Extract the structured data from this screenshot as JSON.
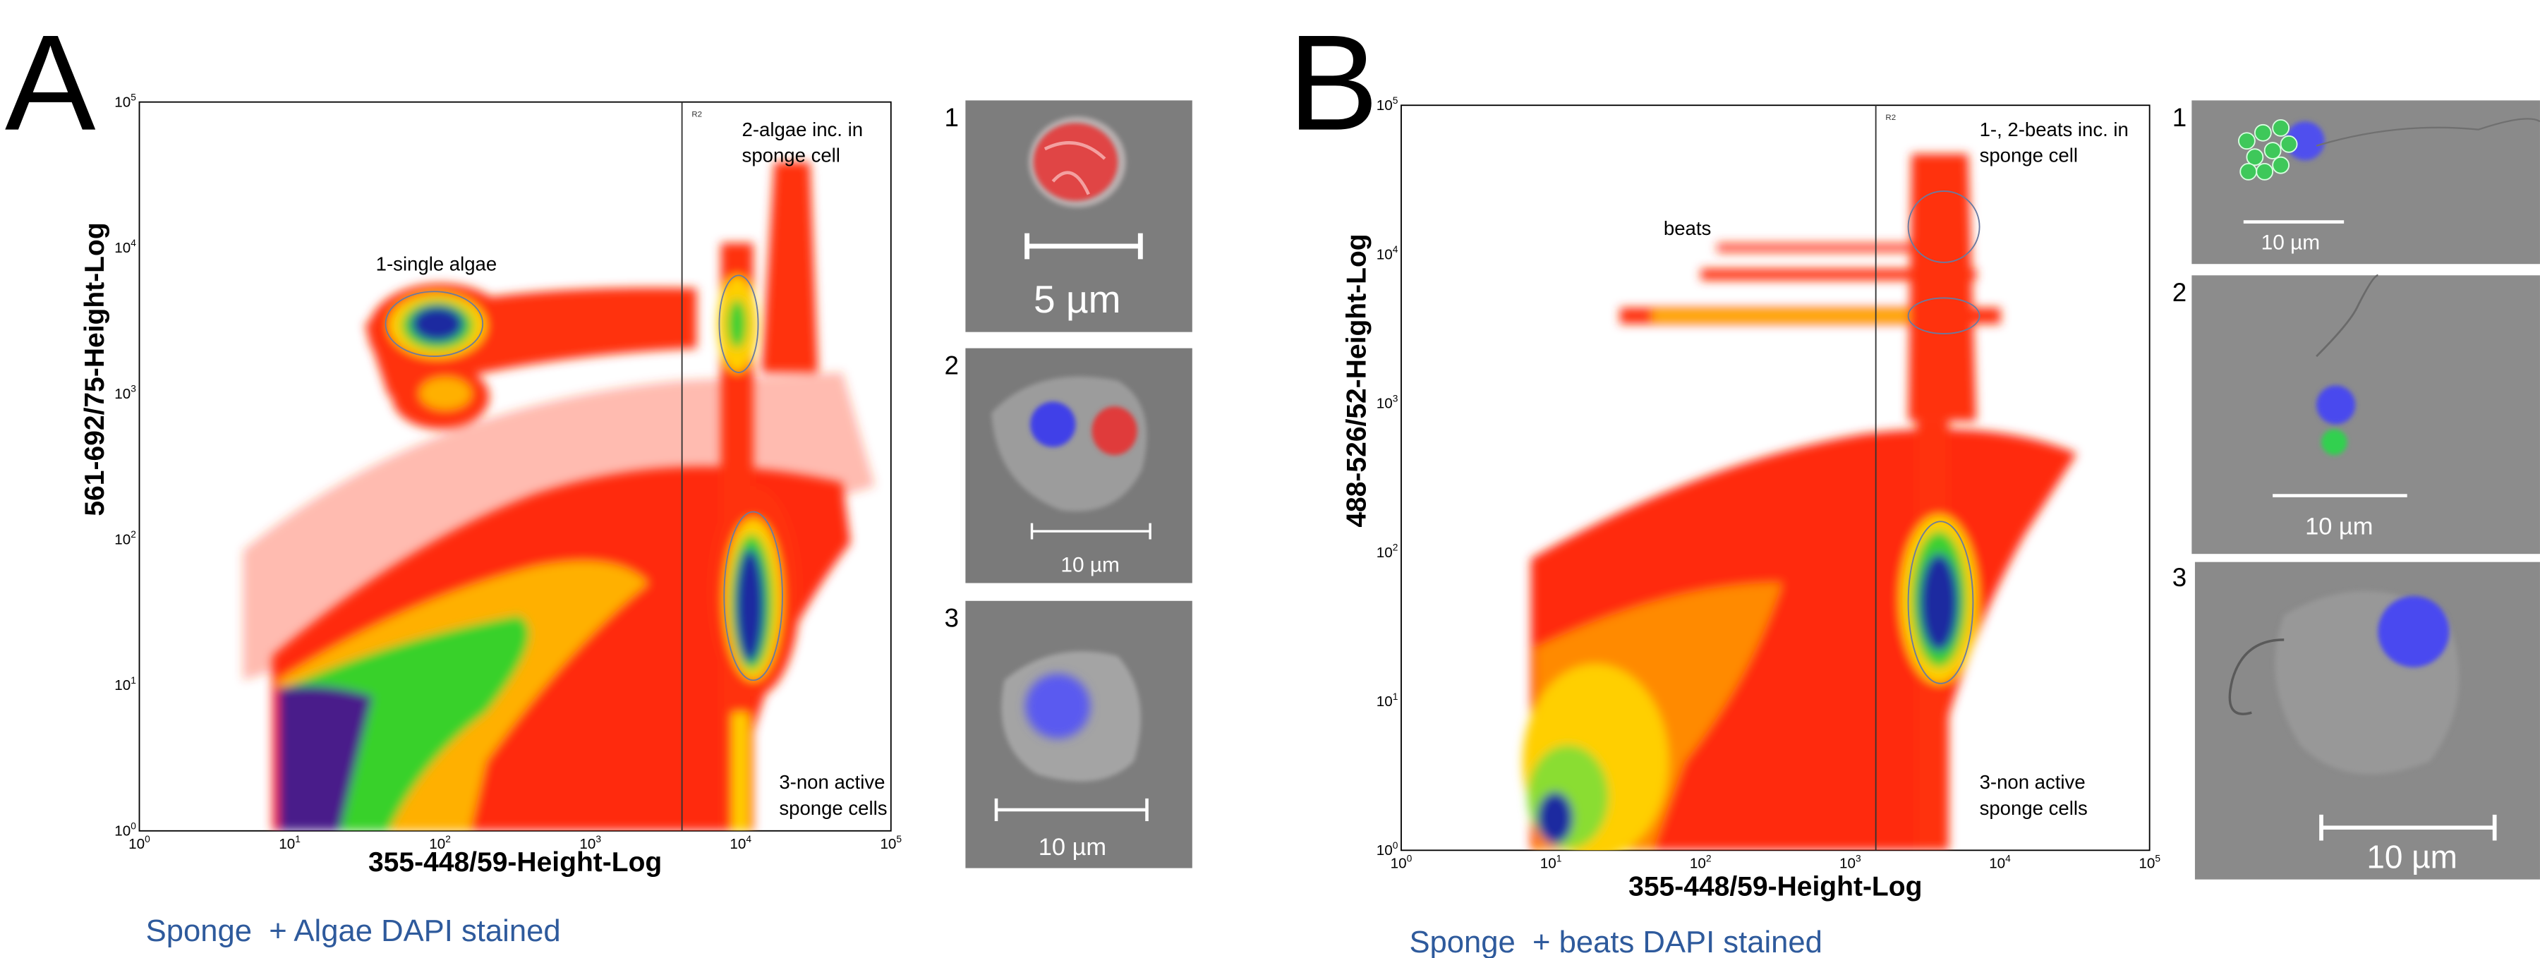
{
  "panels": [
    {
      "letter": "A",
      "gate_label": "R2",
      "annotations": [
        {
          "lines": [
            "1-single algae"
          ]
        },
        {
          "lines": [
            "2-algae inc. in",
            "sponge cell"
          ]
        },
        {
          "lines": [
            "3-non active",
            "sponge cells"
          ]
        }
      ],
      "x_axis_label": "355-448/59-Height-Log",
      "y_axis_label": "561-692/75-Height-Log",
      "x_ticks": [
        {
          "base": "10",
          "exp": "0"
        },
        {
          "base": "10",
          "exp": "1"
        },
        {
          "base": "10",
          "exp": "2"
        },
        {
          "base": "10",
          "exp": "3"
        },
        {
          "base": "10",
          "exp": "4"
        },
        {
          "base": "10",
          "exp": "5"
        }
      ],
      "y_ticks": [
        {
          "base": "10",
          "exp": "0"
        },
        {
          "base": "10",
          "exp": "1"
        },
        {
          "base": "10",
          "exp": "2"
        },
        {
          "base": "10",
          "exp": "3"
        },
        {
          "base": "10",
          "exp": "4"
        },
        {
          "base": "10",
          "exp": "5"
        }
      ],
      "caption": "Sponge  + Algae DAPI stained",
      "images": [
        {
          "number": "1",
          "scale_label": "5 µm"
        },
        {
          "number": "2",
          "scale_label": "10 µm"
        },
        {
          "number": "3",
          "scale_label": "10 µm"
        }
      ]
    },
    {
      "letter": "B",
      "gate_label": "R2",
      "annotations": [
        {
          "lines": [
            "beats"
          ]
        },
        {
          "lines": [
            "1-, 2-beats inc. in",
            "sponge cell"
          ]
        },
        {
          "lines": [
            "3-non active",
            "sponge cells"
          ]
        }
      ],
      "x_axis_label": "355-448/59-Height-Log",
      "y_axis_label": "488-526/52-Height-Log",
      "x_ticks": [
        {
          "base": "10",
          "exp": "0"
        },
        {
          "base": "10",
          "exp": "1"
        },
        {
          "base": "10",
          "exp": "2"
        },
        {
          "base": "10",
          "exp": "3"
        },
        {
          "base": "10",
          "exp": "4"
        },
        {
          "base": "10",
          "exp": "5"
        }
      ],
      "y_ticks": [
        {
          "base": "10",
          "exp": "0"
        },
        {
          "base": "10",
          "exp": "1"
        },
        {
          "base": "10",
          "exp": "2"
        },
        {
          "base": "10",
          "exp": "3"
        },
        {
          "base": "10",
          "exp": "4"
        },
        {
          "base": "10",
          "exp": "5"
        }
      ],
      "caption": "Sponge  + beats DAPI stained",
      "images": [
        {
          "number": "1",
          "scale_label": "10 µm"
        },
        {
          "number": "2",
          "scale_label": "10 µm"
        },
        {
          "number": "3",
          "scale_label": "10 µm"
        }
      ]
    }
  ]
}
